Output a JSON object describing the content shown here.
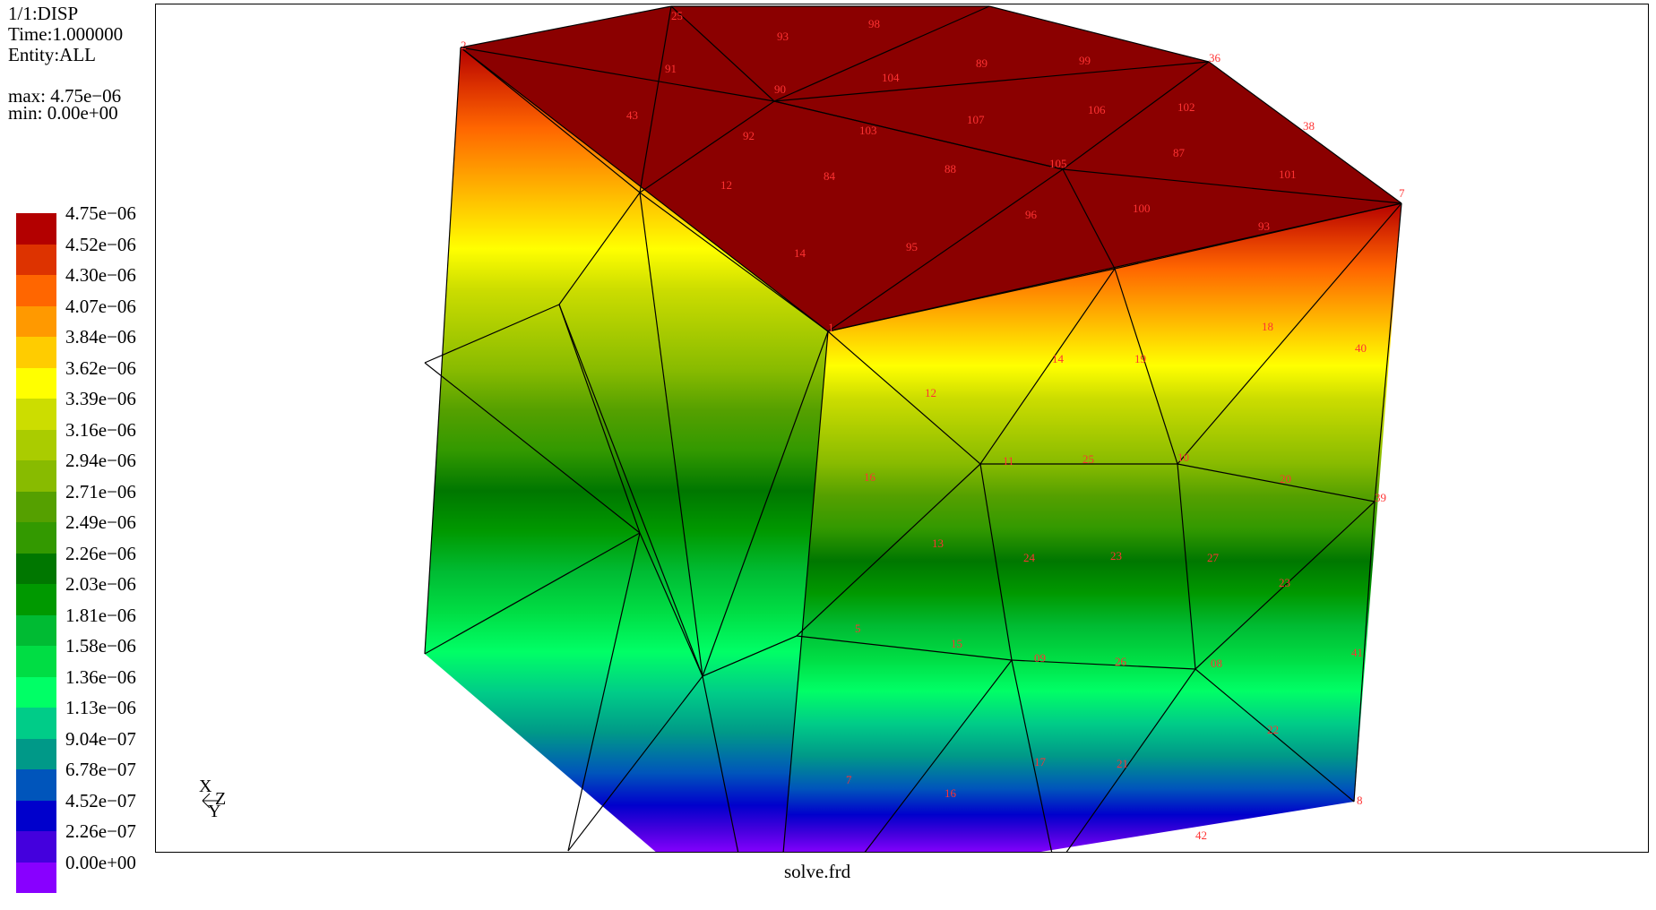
{
  "info": {
    "line1": "1/1:DISP",
    "line2": "Time:1.000000",
    "line3": "Entity:ALL",
    "max": "max: 4.75e−06",
    "min": "min: 0.00e+00"
  },
  "legend": [
    {
      "label": "4.75e−06",
      "color": "#b30000"
    },
    {
      "label": "4.52e−06",
      "color": "#dd3300"
    },
    {
      "label": "4.30e−06",
      "color": "#ff6600"
    },
    {
      "label": "4.07e−06",
      "color": "#ff9900"
    },
    {
      "label": "3.84e−06",
      "color": "#ffcc00"
    },
    {
      "label": "3.62e−06",
      "color": "#ffff00"
    },
    {
      "label": "3.39e−06",
      "color": "#ccdd00"
    },
    {
      "label": "3.16e−06",
      "color": "#aacc00"
    },
    {
      "label": "2.94e−06",
      "color": "#88bb00"
    },
    {
      "label": "2.71e−06",
      "color": "#55a000"
    },
    {
      "label": "2.49e−06",
      "color": "#339900"
    },
    {
      "label": "2.26e−06",
      "color": "#007700"
    },
    {
      "label": "2.03e−06",
      "color": "#009900"
    },
    {
      "label": "1.81e−06",
      "color": "#00bb33"
    },
    {
      "label": "1.58e−06",
      "color": "#00dd44"
    },
    {
      "label": "1.36e−06",
      "color": "#00ff66"
    },
    {
      "label": "1.13e−06",
      "color": "#00cc88"
    },
    {
      "label": "9.04e−07",
      "color": "#009988"
    },
    {
      "label": "6.78e−07",
      "color": "#0055bb"
    },
    {
      "label": "4.52e−07",
      "color": "#0000cc"
    },
    {
      "label": "2.26e−07",
      "color": "#4400dd"
    },
    {
      "label": "0.00e+00",
      "color": "#8800ff"
    }
  ],
  "triad": {
    "x": "X",
    "z": "Z",
    "y": "Y"
  },
  "filename": "solve.frd",
  "nodes": [
    "2",
    "25",
    "93",
    "98",
    "36",
    "91",
    "90",
    "104",
    "89",
    "99",
    "102",
    "43",
    "92",
    "103",
    "107",
    "106",
    "38",
    "12",
    "84",
    "88",
    "105",
    "87",
    "101",
    "7",
    "14",
    "95",
    "96",
    "100",
    "93",
    "1",
    "12",
    "14",
    "19",
    "18",
    "40",
    "16",
    "11",
    "25",
    "10",
    "20",
    "39",
    "13",
    "24",
    "23",
    "27",
    "23",
    "5",
    "15",
    "09",
    "26",
    "08",
    "41",
    "7",
    "16",
    "17",
    "21",
    "22",
    "8",
    "42"
  ]
}
